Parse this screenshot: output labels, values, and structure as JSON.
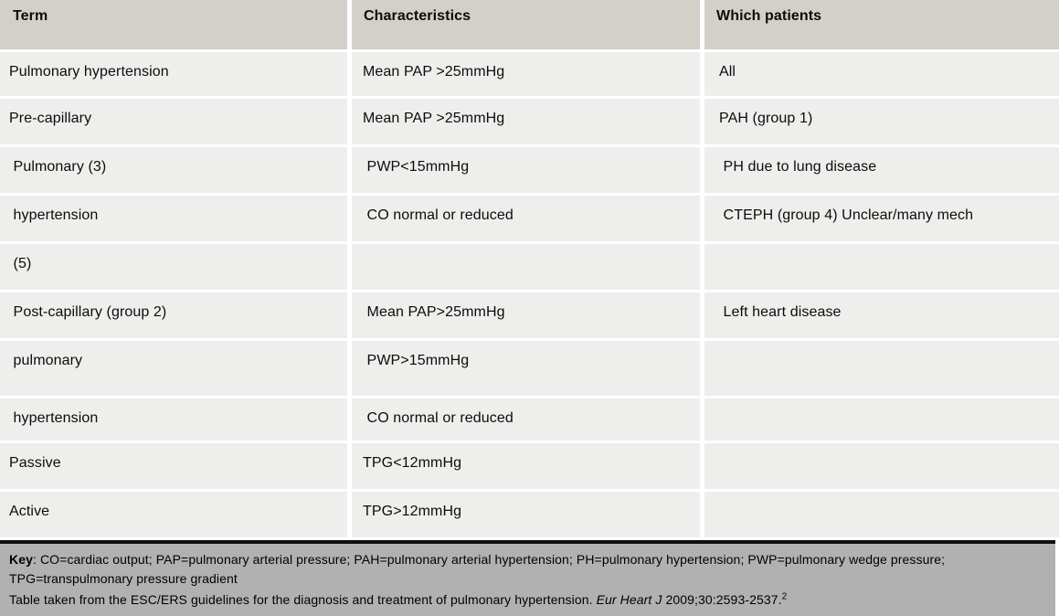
{
  "table": {
    "columns": [
      {
        "key": "term",
        "label": "Term"
      },
      {
        "key": "characteristics",
        "label": "Characteristics"
      },
      {
        "key": "patients",
        "label": "Which patients"
      }
    ],
    "rows": [
      {
        "term": "Pulmonary hypertension",
        "characteristics": "Mean PAP >25mmHg",
        "patients": "All"
      },
      {
        "term": "Pre-capillary",
        "characteristics": "Mean PAP >25mmHg",
        "patients": "PAH (group 1)"
      },
      {
        "term": " Pulmonary (3)",
        "characteristics": " PWP<15mmHg",
        "patients": " PH due to lung disease"
      },
      {
        "term": " hypertension",
        "characteristics": " CO normal or reduced",
        "patients": " CTEPH (group 4) Unclear/many mech"
      },
      {
        "term": " (5)",
        "characteristics": "",
        "patients": ""
      },
      {
        "term": " Post-capillary (group 2)",
        "characteristics": " Mean PAP>25mmHg",
        "patients": " Left heart disease"
      },
      {
        "term": " pulmonary",
        "characteristics": " PWP>15mmHg",
        "patients": ""
      },
      {
        "term": " hypertension",
        "characteristics": " CO normal or reduced",
        "patients": ""
      },
      {
        "term": "Passive",
        "characteristics": "TPG<12mmHg",
        "patients": ""
      },
      {
        "term": "Active",
        "characteristics": "TPG>12mmHg",
        "patients": ""
      }
    ]
  },
  "footer": {
    "key_label": "Key",
    "key_line1": ": CO=cardiac output; PAP=pulmonary arterial pressure; PAH=pulmonary arterial hypertension; PH=pulmonary hypertension; PWP=pulmonary wedge pressure;",
    "key_line2": "TPG=transpulmonary pressure gradient",
    "source_text": "Table taken from the ESC/ERS guidelines for the diagnosis and treatment of pulmonary hypertension. ",
    "source_journal": "Eur Heart J",
    "source_citation": " 2009;30:2593-2537.",
    "source_ref": "2"
  },
  "colors": {
    "header_bg": "#d3cfc9",
    "row_bg": "#eeeeec",
    "footer_bg": "#b1b1b1",
    "footer_border": "#0e0e0e",
    "gap": "#ffffff",
    "text": "#0c0c0c"
  }
}
